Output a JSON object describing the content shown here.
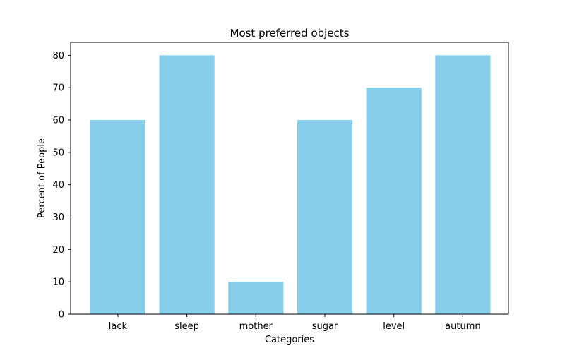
{
  "chart_data": {
    "type": "bar",
    "title": "Most preferred objects",
    "xlabel": "Categories",
    "ylabel": "Percent of People",
    "categories": [
      "lack",
      "sleep",
      "mother",
      "sugar",
      "level",
      "autumn"
    ],
    "values": [
      60,
      80,
      10,
      60,
      70,
      80
    ],
    "ylim": [
      0,
      84
    ],
    "yticks": [
      0,
      10,
      20,
      30,
      40,
      50,
      60,
      70,
      80
    ],
    "bar_color": "#87CEEB",
    "grid": false,
    "legend": "none"
  }
}
